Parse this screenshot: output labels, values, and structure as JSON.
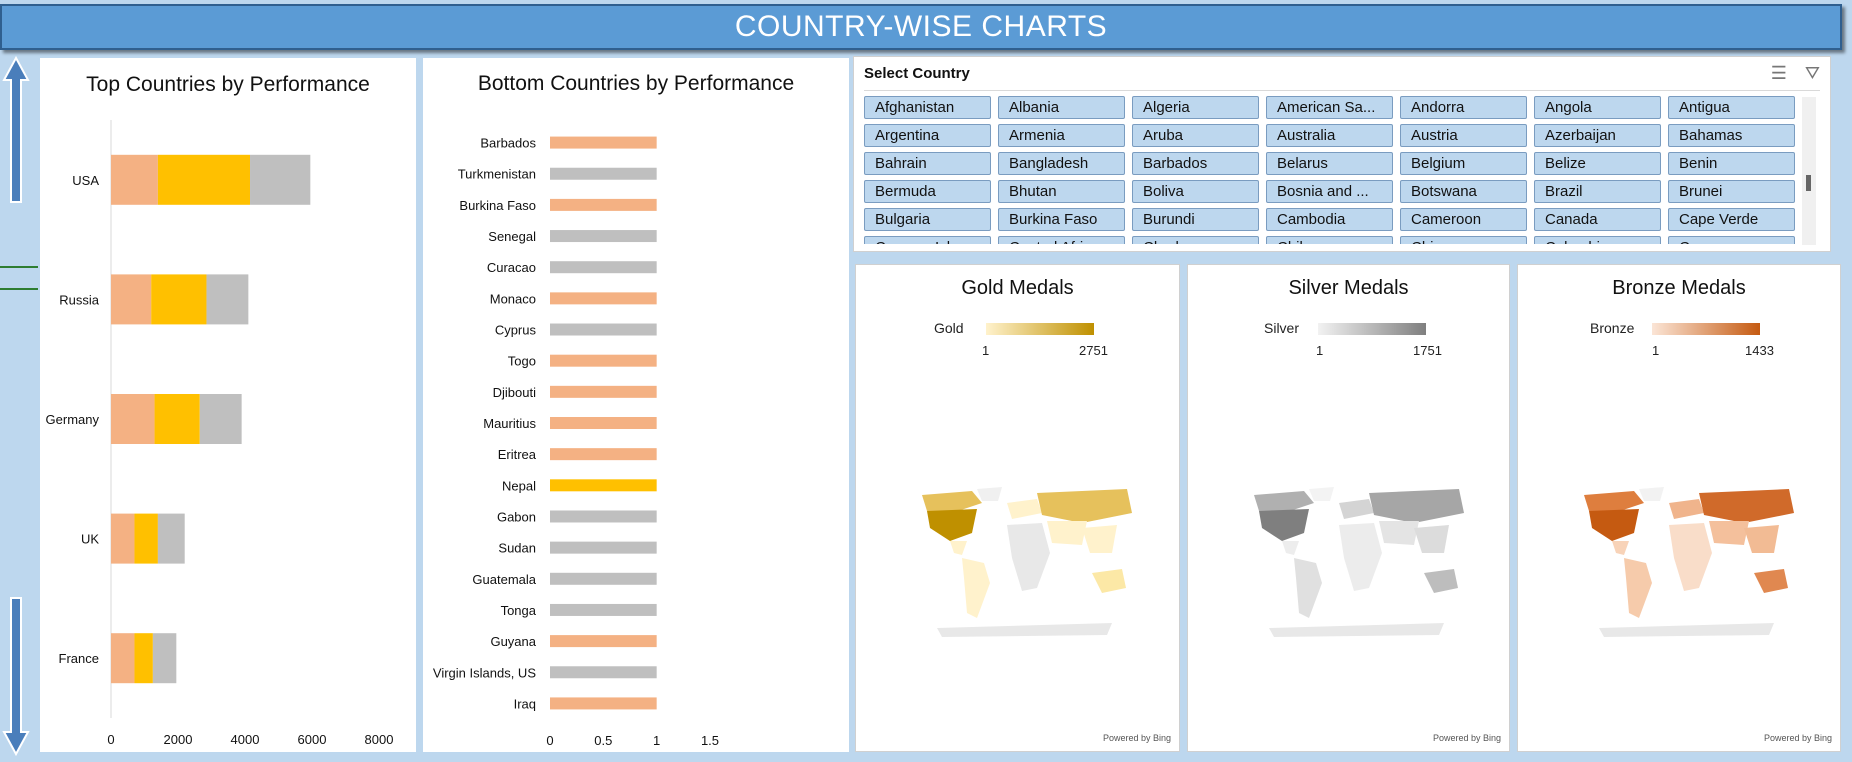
{
  "banner": {
    "title": "COUNTRY-WISE CHARTS"
  },
  "chart_data": [
    {
      "type": "bar",
      "orientation": "horizontal",
      "stacked": true,
      "title": "Top Countries by Performance",
      "categories": [
        "USA",
        "Russia",
        "Germany",
        "UK",
        "France"
      ],
      "series": [
        {
          "values": [
            1400,
            1200,
            1300,
            700,
            700
          ],
          "color": "#f4b183"
        },
        {
          "values": [
            2750,
            1650,
            1350,
            700,
            550
          ],
          "color": "#ffc000"
        },
        {
          "values": [
            1800,
            1250,
            1250,
            800,
            700
          ],
          "color": "#bfbfbf"
        }
      ],
      "xlim": [
        0,
        8000
      ],
      "xticks": [
        "0",
        "2000",
        "4000",
        "6000",
        "8000"
      ]
    },
    {
      "type": "bar",
      "orientation": "horizontal",
      "title": "Bottom Countries by Performance",
      "categories": [
        "Barbados",
        "Turkmenistan",
        "Burkina Faso",
        "Senegal",
        "Curacao",
        "Monaco",
        "Cyprus",
        "Togo",
        "Djibouti",
        "Mauritius",
        "Eritrea",
        "Nepal",
        "Gabon",
        "Sudan",
        "Guatemala",
        "Tonga",
        "Guyana",
        "Virgin Islands, US",
        "Iraq"
      ],
      "values": [
        1,
        1,
        1,
        1,
        1,
        1,
        1,
        1,
        1,
        1,
        1,
        1,
        1,
        1,
        1,
        1,
        1,
        1,
        1
      ],
      "bar_colors": [
        "#f4b183",
        "#bfbfbf",
        "#f4b183",
        "#bfbfbf",
        "#bfbfbf",
        "#f4b183",
        "#bfbfbf",
        "#f4b183",
        "#f4b183",
        "#f4b183",
        "#f4b183",
        "#ffc000",
        "#bfbfbf",
        "#bfbfbf",
        "#bfbfbf",
        "#bfbfbf",
        "#f4b183",
        "#bfbfbf",
        "#f4b183"
      ],
      "xlim": [
        0,
        1.5
      ],
      "xticks": [
        "0",
        "0.5",
        "1",
        "1.5"
      ]
    }
  ],
  "slicer": {
    "title": "Select Country",
    "multi_select_icon": "multi-select-icon",
    "clear_filter_icon": "clear-filter-icon",
    "items": [
      "Afghanistan",
      "Albania",
      "Algeria",
      "American Sa...",
      "Andorra",
      "Angola",
      "Antigua",
      "Argentina",
      "Armenia",
      "Aruba",
      "Australia",
      "Austria",
      "Azerbaijan",
      "Bahamas",
      "Bahrain",
      "Bangladesh",
      "Barbados",
      "Belarus",
      "Belgium",
      "Belize",
      "Benin",
      "Bermuda",
      "Bhutan",
      "Boliva",
      "Bosnia and ...",
      "Botswana",
      "Brazil",
      "Brunei",
      "Bulgaria",
      "Burkina Faso",
      "Burundi",
      "Cambodia",
      "Cameroon",
      "Canada",
      "Cape Verde",
      "Cayman Isl...",
      "Central Afri...",
      "Chad",
      "Chile",
      "China",
      "Colombia",
      "Comoros"
    ]
  },
  "maps": [
    {
      "title": "Gold Medals",
      "legend": "Gold",
      "min": "1",
      "max": "2751",
      "low": "#fff2cc",
      "high": "#bf9000",
      "powered": "Powered by Bing"
    },
    {
      "title": "Silver Medals",
      "legend": "Silver",
      "min": "1",
      "max": "1751",
      "low": "#f2f2f2",
      "high": "#7f7f7f",
      "powered": "Powered by Bing"
    },
    {
      "title": "Bronze Medals",
      "legend": "Bronze",
      "min": "1",
      "max": "1433",
      "low": "#fbe5d6",
      "high": "#c55a11",
      "powered": "Powered by Bing"
    }
  ]
}
